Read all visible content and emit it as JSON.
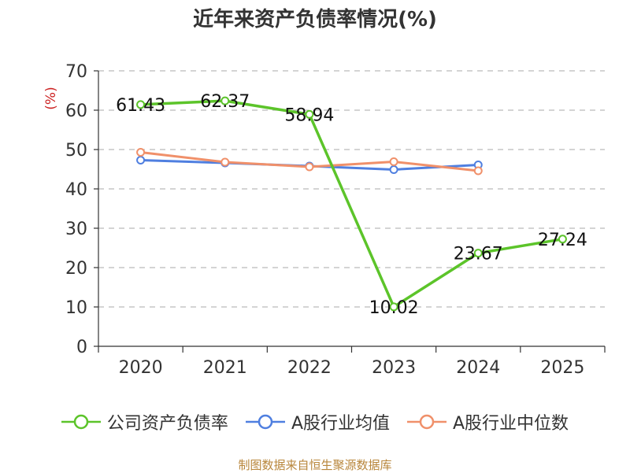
{
  "chart_data": {
    "type": "line",
    "title": "近年来资产负债率情况(%)",
    "ylabel": "(%)",
    "xlabel": "",
    "categories": [
      "2020",
      "2021",
      "2022",
      "2023",
      "2024",
      "2025"
    ],
    "ylim": [
      0,
      70
    ],
    "yticks": [
      0,
      10,
      20,
      30,
      40,
      50,
      60,
      70
    ],
    "grid": true,
    "legend_position": "bottom",
    "series": [
      {
        "name": "公司资产负债率",
        "color": "#5cc42a",
        "values": [
          61.43,
          62.37,
          58.94,
          10.02,
          23.67,
          27.24
        ],
        "labels": [
          "61.43",
          "62.37",
          "58.94",
          "10.02",
          "23.67",
          "27.24"
        ]
      },
      {
        "name": "A股行业均值",
        "color": "#4f7fe0",
        "values": [
          47.3,
          46.6,
          45.8,
          44.9,
          46.1,
          null
        ]
      },
      {
        "name": "A股行业中位数",
        "color": "#f0906a",
        "values": [
          49.3,
          46.8,
          45.6,
          46.9,
          44.6,
          null
        ]
      }
    ]
  },
  "source": "制图数据来自恒生聚源数据库"
}
